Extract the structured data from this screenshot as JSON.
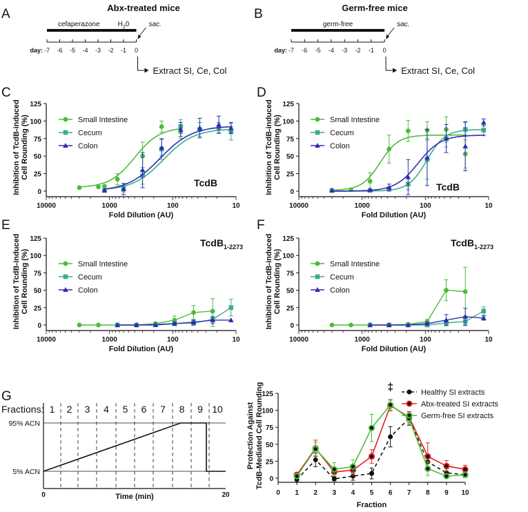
{
  "figure": {
    "panel_a": {
      "letter": "A",
      "title": "Abx-treated mice",
      "bars": [
        {
          "label": "cefaperazone",
          "from": -7,
          "to": -2
        },
        {
          "label": "H",
          "sub": "2",
          "post": "0",
          "from": -2,
          "to": 0
        }
      ],
      "end_label": "sac.",
      "day_label": "day:",
      "days": [
        -7,
        -6,
        -5,
        -4,
        -3,
        -2,
        -1,
        0
      ],
      "extract": "Extract SI, Ce, Col"
    },
    "panel_b": {
      "letter": "B",
      "title": "Germ-free mice",
      "bars": [
        {
          "label": "germ-free",
          "from": -7,
          "to": 0
        }
      ],
      "end_label": "sac.",
      "day_label": "day:",
      "days": [
        -7,
        -6,
        -5,
        -4,
        -3,
        -2,
        -1,
        0
      ],
      "extract": "Extract SI, Ce, Col"
    },
    "panel_g": {
      "letter": "G",
      "fractions_label": "Fractions:",
      "fractions": [
        "1",
        "2",
        "3",
        "4",
        "5",
        "6",
        "7",
        "8",
        "9",
        "10"
      ],
      "y_high_label": "95% ACN",
      "y_low_label": "5% ACN",
      "xlabel": "Time (min)",
      "x_start": "0",
      "x_end": "20"
    }
  },
  "chart_data": [
    {
      "panel": "C",
      "type": "line",
      "ylabel": "Inhibition of TcdB-induced Cell Rounding (%)",
      "xlabel": "Fold Dilution (AU)",
      "xscale": "log-reversed",
      "xlim": [
        10000,
        10
      ],
      "ylim": [
        0,
        125
      ],
      "x_ticks": [
        "10000",
        "1000",
        "100",
        "10"
      ],
      "y_ticks": [
        "0",
        "25",
        "50",
        "75",
        "100",
        "125"
      ],
      "annotation": {
        "main": "TcdB",
        "sub": ""
      },
      "legend": [
        "Small Intestine",
        "Cecum",
        "Colon"
      ],
      "series": [
        {
          "name": "Small Intestine",
          "color": "#4cbb3a",
          "marker": "circle",
          "x": [
            3000,
            1500,
            1200,
            750,
            300,
            150,
            75
          ],
          "y": [
            5,
            6,
            7,
            17,
            50,
            92,
            85
          ],
          "err": [
            0,
            0,
            0,
            8,
            20,
            8,
            10
          ],
          "fit": {
            "bottom": 5,
            "top": 91,
            "ec50": 400,
            "hill": 2.2
          }
        },
        {
          "name": "Cecum",
          "color": "#3eaa8a",
          "marker": "square",
          "x": [
            1200,
            600,
            300,
            150,
            75,
            37.5,
            18.75,
            12
          ],
          "y": [
            1,
            5,
            22,
            60,
            92,
            88,
            90,
            85
          ],
          "err": [
            0,
            6,
            12,
            15,
            10,
            10,
            8,
            12
          ],
          "fit": {
            "bottom": 1,
            "top": 89,
            "ec50": 140,
            "hill": 1.8
          }
        },
        {
          "name": "Colon",
          "color": "#2d2db4",
          "marker": "triangle",
          "x": [
            1200,
            600,
            300,
            150,
            75,
            37.5,
            18.75,
            12
          ],
          "y": [
            1,
            3,
            30,
            62,
            88,
            90,
            95,
            90
          ],
          "err": [
            0,
            8,
            25,
            12,
            10,
            14,
            12,
            8
          ],
          "fit": {
            "bottom": 0,
            "top": 93,
            "ec50": 160,
            "hill": 1.7
          }
        }
      ]
    },
    {
      "panel": "D",
      "type": "line",
      "ylabel": "Inhibition of TcdB-induced Cell Rounding (%)",
      "xlabel": "Fold Dilution (AU)",
      "xscale": "log-reversed",
      "xlim": [
        10000,
        10
      ],
      "ylim": [
        0,
        125
      ],
      "x_ticks": [
        "10000",
        "1000",
        "100",
        "10"
      ],
      "y_ticks": [
        "0",
        "25",
        "50",
        "75",
        "100",
        "125"
      ],
      "annotation": {
        "main": "TcdB",
        "sub": ""
      },
      "legend": [
        "Small Intestine",
        "Cecum",
        "Colon"
      ],
      "series": [
        {
          "name": "Small Intestine",
          "color": "#4cbb3a",
          "marker": "circle",
          "x": [
            3000,
            1500,
            750,
            375,
            187.5,
            93.75,
            46.9,
            23.4
          ],
          "y": [
            1,
            2,
            14,
            60,
            86,
            87,
            88,
            53
          ],
          "err": [
            0,
            0,
            12,
            20,
            15,
            12,
            18,
            20
          ],
          "fit": {
            "bottom": 1,
            "top": 80,
            "ec50": 520,
            "hill": 3.0
          }
        },
        {
          "name": "Cecum",
          "color": "#3eaa8a",
          "marker": "square",
          "x": [
            3000,
            750,
            375,
            187.5,
            93.75,
            46.9,
            23.4,
            12
          ],
          "y": [
            1,
            1,
            3,
            10,
            45,
            75,
            88,
            87
          ],
          "err": [
            0,
            0,
            0,
            8,
            28,
            12,
            10,
            8
          ],
          "fit": {
            "bottom": 0,
            "top": 88,
            "ec50": 95,
            "hill": 3.0
          }
        },
        {
          "name": "Colon",
          "color": "#2d2db4",
          "marker": "triangle",
          "x": [
            3000,
            750,
            375,
            187.5,
            93.75,
            46.9,
            23.4,
            12
          ],
          "y": [
            1,
            2,
            5,
            20,
            48,
            75,
            64,
            98
          ],
          "err": [
            0,
            0,
            5,
            25,
            40,
            20,
            35,
            5
          ],
          "fit": {
            "bottom": 0,
            "top": 80,
            "ec50": 130,
            "hill": 2.4
          }
        }
      ]
    },
    {
      "panel": "E",
      "type": "line",
      "ylabel": "Inhibition of TcdB-induced Cell Rounding (%)",
      "xlabel": "Fold Dilution (AU)",
      "xscale": "log-reversed",
      "xlim": [
        10000,
        10
      ],
      "ylim": [
        0,
        125
      ],
      "x_ticks": [
        "10000",
        "1000",
        "100",
        "10"
      ],
      "y_ticks": [
        "0",
        "25",
        "50",
        "75",
        "100",
        "125"
      ],
      "annotation": {
        "main": "TcdB",
        "sub": "1-2273"
      },
      "legend": [
        "Small Intestine",
        "Cecum",
        "Colon"
      ],
      "series": [
        {
          "name": "Small Intestine",
          "color": "#4cbb3a",
          "marker": "circle",
          "x": [
            3000,
            1500,
            750,
            375,
            187.5,
            93.75,
            46.9,
            23.4
          ],
          "y": [
            0,
            0,
            0,
            0,
            2,
            7,
            18,
            20
          ],
          "err": [
            0,
            0,
            0,
            0,
            2,
            6,
            10,
            18
          ],
          "fit": null
        },
        {
          "name": "Cecum",
          "color": "#3eaa8a",
          "marker": "square",
          "x": [
            750,
            375,
            187.5,
            93.75,
            46.9,
            23.4,
            12
          ],
          "y": [
            0,
            0,
            1,
            2,
            3,
            8,
            25
          ],
          "err": [
            0,
            0,
            0,
            3,
            4,
            10,
            12
          ],
          "fit": null
        },
        {
          "name": "Colon",
          "color": "#2d2db4",
          "marker": "triangle",
          "x": [
            750,
            375,
            187.5,
            93.75,
            46.9,
            23.4,
            12
          ],
          "y": [
            0,
            0,
            0,
            2,
            4,
            7,
            7
          ],
          "err": [
            0,
            0,
            0,
            2,
            3,
            5,
            0
          ],
          "fit": null
        }
      ]
    },
    {
      "panel": "F",
      "type": "line",
      "ylabel": "Inhibition of TcdB-induced Cell Rounding (%)",
      "xlabel": "Fold Dilution (AU)",
      "xscale": "log-reversed",
      "xlim": [
        10000,
        10
      ],
      "ylim": [
        0,
        125
      ],
      "x_ticks": [
        "10000",
        "1000",
        "100",
        "10"
      ],
      "y_ticks": [
        "0",
        "25",
        "50",
        "75",
        "100",
        "125"
      ],
      "annotation": {
        "main": "TcdB",
        "sub": "1-2273"
      },
      "legend": [
        "Small Intestine",
        "Cecum",
        "Colon"
      ],
      "series": [
        {
          "name": "Small Intestine",
          "color": "#4cbb3a",
          "marker": "circle",
          "x": [
            3000,
            1500,
            750,
            375,
            187.5,
            93.75,
            46.9,
            23.4
          ],
          "y": [
            0,
            0,
            0,
            0,
            1,
            5,
            50,
            48
          ],
          "err": [
            0,
            0,
            0,
            0,
            0,
            3,
            15,
            35
          ],
          "fit": null
        },
        {
          "name": "Cecum",
          "color": "#3eaa8a",
          "marker": "square",
          "x": [
            750,
            375,
            187.5,
            93.75,
            46.9,
            23.4,
            12
          ],
          "y": [
            0,
            0,
            0,
            0,
            3,
            5,
            20
          ],
          "err": [
            0,
            0,
            0,
            0,
            3,
            6,
            6
          ],
          "fit": null
        },
        {
          "name": "Colon",
          "color": "#2d2db4",
          "marker": "triangle",
          "x": [
            750,
            375,
            187.5,
            93.75,
            46.9,
            23.4,
            12
          ],
          "y": [
            0,
            0,
            0,
            2,
            7,
            12,
            10
          ],
          "err": [
            0,
            0,
            0,
            2,
            8,
            12,
            3
          ],
          "fit": null
        }
      ]
    },
    {
      "panel": "G",
      "type": "line",
      "ylabel": "Protection Against TcdB-Mediated Cell Rounding",
      "xlabel": "Fraction",
      "xlim": [
        0,
        10
      ],
      "ylim": [
        0,
        125
      ],
      "x_ticks": [
        "0",
        "1",
        "2",
        "3",
        "4",
        "5",
        "6",
        "7",
        "8",
        "9",
        "10"
      ],
      "y_ticks": [
        "0",
        "25",
        "50",
        "75",
        "100",
        "125"
      ],
      "annotation": "‡",
      "annotation_x": 6,
      "legend": [
        "Healthy SI extracts",
        "Abx-treated SI extracts",
        "Germ-free SI extracts"
      ],
      "series": [
        {
          "name": "Healthy SI extracts",
          "color": "#111111",
          "style": "dashed",
          "x": [
            1,
            2,
            3,
            4,
            5,
            6,
            7,
            8,
            9,
            10
          ],
          "y": [
            -2,
            27,
            -1,
            3,
            7,
            61,
            88,
            24,
            8,
            5
          ],
          "err": [
            2,
            10,
            3,
            6,
            8,
            15,
            10,
            10,
            6,
            4
          ]
        },
        {
          "name": "Abx-treated SI extracts",
          "color": "#e02020",
          "style": "solid",
          "x": [
            1,
            2,
            3,
            4,
            5,
            6,
            7,
            8,
            9,
            10
          ],
          "y": [
            5,
            44,
            9,
            12,
            32,
            107,
            90,
            32,
            18,
            13
          ],
          "err": [
            3,
            12,
            6,
            8,
            10,
            8,
            8,
            20,
            8,
            6
          ]
        },
        {
          "name": "Germ-free SI extracts",
          "color": "#4cbb3a",
          "style": "solid",
          "x": [
            1,
            2,
            3,
            4,
            5,
            6,
            7,
            8,
            9,
            10
          ],
          "y": [
            3,
            43,
            13,
            17,
            74,
            108,
            88,
            14,
            3,
            5
          ],
          "err": [
            3,
            10,
            10,
            10,
            20,
            8,
            8,
            10,
            3,
            3
          ]
        }
      ]
    }
  ]
}
